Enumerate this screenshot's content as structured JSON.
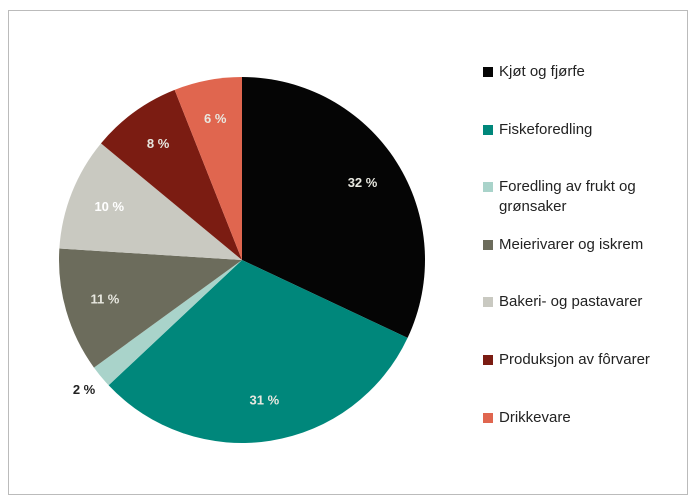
{
  "chart_data": {
    "type": "pie",
    "categories": [
      "Kjøt og fjørfe",
      "Fiskeforedling",
      "Foredling av frukt og grønsaker",
      "Meierivarer og iskrem",
      "Bakeri- og pastavarer",
      "Produksjon av fôrvarer",
      "Drikkevare"
    ],
    "values": [
      32,
      31,
      2,
      11,
      10,
      8,
      6
    ],
    "value_labels": [
      "32 %",
      "31 %",
      "2 %",
      "11 %",
      "10 %",
      "8 %",
      "6 %"
    ],
    "colors": [
      "#050505",
      "#00877b",
      "#a9d3ca",
      "#6c6c5c",
      "#c9c9c1",
      "#7b1c12",
      "#e0664f"
    ],
    "legend": "right"
  }
}
